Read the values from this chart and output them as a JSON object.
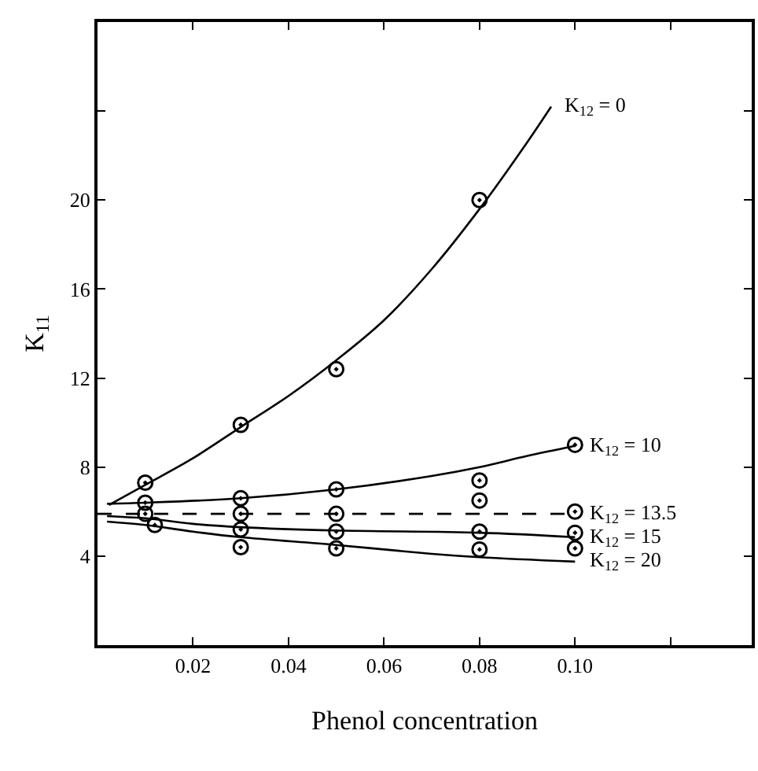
{
  "chart_data": {
    "type": "line",
    "xlabel": "Phenol concentration",
    "ylabel": "K$_{11}$",
    "xlim": [
      0,
      0.137
    ],
    "ylim": [
      0,
      28
    ],
    "xticks": [
      0.02,
      0.04,
      0.06,
      0.08,
      {
        "value": 0.1,
        "label": "0.10"
      },
      {
        "value": 0.12,
        "label": null
      }
    ],
    "yticks": [
      4,
      8,
      12,
      16,
      20,
      {
        "value": 24,
        "label": null
      }
    ],
    "grid": false,
    "legend": false,
    "series": [
      {
        "name": "K$_{12}$ = 0",
        "color": "#000000",
        "line_style": "solid",
        "x": [
          0.0024,
          0.01,
          0.02,
          0.03,
          0.04,
          0.05,
          0.06,
          0.07,
          0.08,
          0.09,
          0.095
        ],
        "values": [
          6.3,
          7.2,
          8.4,
          9.8,
          11.2,
          12.8,
          14.6,
          16.9,
          19.6,
          22.6,
          24.2
        ]
      },
      {
        "name": "K$_{12}$ = 10",
        "color": "#000000",
        "line_style": "solid",
        "x": [
          0.002,
          0.01,
          0.03,
          0.05,
          0.07,
          0.08,
          0.09,
          0.1
        ],
        "values": [
          6.35,
          6.4,
          6.6,
          7.0,
          7.6,
          8.0,
          8.5,
          8.95
        ]
      },
      {
        "name": "K$_{12}$ = 13.5",
        "color": "#000000",
        "line_style": "dashed",
        "x": [
          0,
          0.1
        ],
        "values": [
          5.9,
          5.9
        ]
      },
      {
        "name": "K$_{12}$ = 15",
        "color": "#000000",
        "line_style": "solid",
        "x": [
          0.002,
          0.01,
          0.02,
          0.03,
          0.05,
          0.08,
          0.1
        ],
        "values": [
          5.8,
          5.7,
          5.45,
          5.3,
          5.15,
          5.05,
          4.85
        ]
      },
      {
        "name": "K$_{12}$ = 20",
        "color": "#000000",
        "line_style": "solid",
        "x": [
          0.002,
          0.01,
          0.02,
          0.03,
          0.05,
          0.07,
          0.08,
          0.1
        ],
        "values": [
          5.55,
          5.4,
          5.1,
          4.85,
          4.5,
          4.1,
          3.95,
          3.75
        ]
      },
      {
        "type": "scatter",
        "marker": "circle",
        "color": "#000000",
        "x": [
          0.01,
          0.03,
          0.05,
          0.08
        ],
        "values": [
          7.3,
          9.9,
          12.4,
          20.0
        ]
      },
      {
        "type": "scatter",
        "marker": "circle",
        "color": "#000000",
        "x": [
          0.01,
          0.03,
          0.05,
          0.08,
          0.08,
          0.1
        ],
        "values": [
          6.4,
          6.6,
          7.0,
          7.4,
          6.5,
          9.0
        ]
      },
      {
        "type": "scatter",
        "marker": "circle",
        "color": "#000000",
        "x": [
          0.01,
          0.03,
          0.05,
          0.1
        ],
        "values": [
          5.9,
          5.9,
          5.9,
          6.0
        ]
      },
      {
        "type": "scatter",
        "marker": "circle",
        "color": "#000000",
        "x": [
          0.012,
          0.03,
          0.05,
          0.08,
          0.1
        ],
        "values": [
          5.4,
          5.2,
          5.1,
          5.1,
          5.05
        ]
      },
      {
        "type": "scatter",
        "marker": "circle",
        "color": "#000000",
        "x": [
          0.03,
          0.05,
          0.08,
          0.1
        ],
        "values": [
          4.4,
          4.35,
          4.3,
          4.35
        ]
      }
    ]
  }
}
